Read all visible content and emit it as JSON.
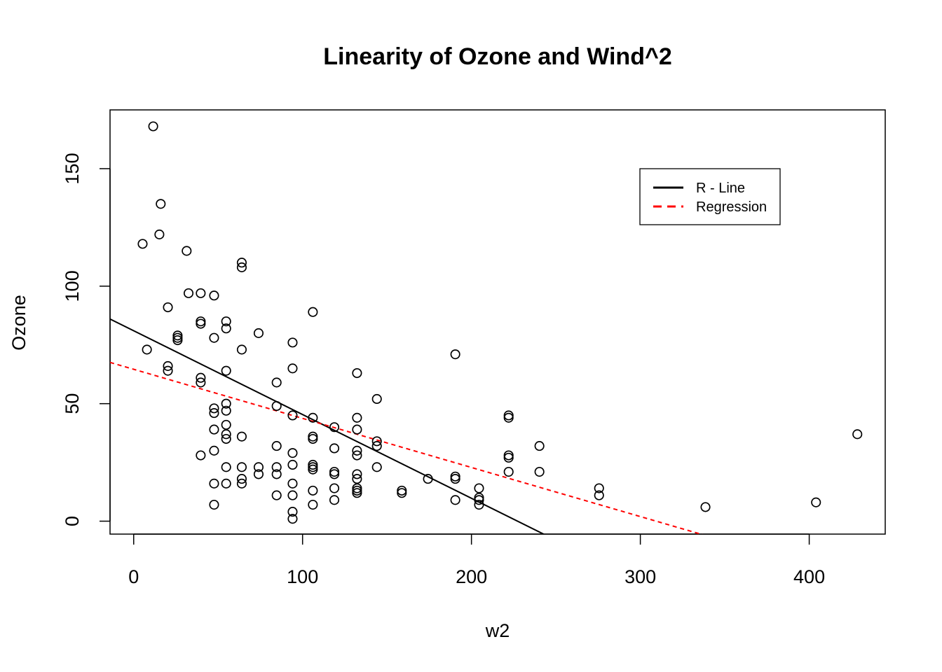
{
  "chart_data": {
    "type": "scatter",
    "title": "Linearity of Ozone and Wind^2",
    "xlabel": "w2",
    "ylabel": "Ozone",
    "xlim": [
      -14,
      445
    ],
    "ylim": [
      -5.5,
      175
    ],
    "xticks": [
      0,
      100,
      200,
      300,
      400
    ],
    "yticks": [
      0,
      50,
      100,
      150
    ],
    "grid": false,
    "legend_position": "top-right",
    "points": [
      [
        5.29,
        118
      ],
      [
        7.84,
        73
      ],
      [
        11.56,
        168
      ],
      [
        15.21,
        122
      ],
      [
        16,
        135
      ],
      [
        20.25,
        91
      ],
      [
        20.25,
        66
      ],
      [
        20.25,
        64
      ],
      [
        26.01,
        79
      ],
      [
        26.01,
        77
      ],
      [
        26.01,
        78
      ],
      [
        31.36,
        115
      ],
      [
        32.49,
        97
      ],
      [
        39.69,
        97
      ],
      [
        39.69,
        85
      ],
      [
        39.69,
        84
      ],
      [
        39.69,
        61
      ],
      [
        39.69,
        59
      ],
      [
        39.69,
        28
      ],
      [
        47.61,
        96
      ],
      [
        47.61,
        78
      ],
      [
        47.61,
        48
      ],
      [
        47.61,
        46
      ],
      [
        47.61,
        39
      ],
      [
        47.61,
        30
      ],
      [
        47.61,
        16
      ],
      [
        47.61,
        7
      ],
      [
        54.76,
        85
      ],
      [
        54.76,
        82
      ],
      [
        54.76,
        64
      ],
      [
        54.76,
        50
      ],
      [
        54.76,
        47
      ],
      [
        54.76,
        41
      ],
      [
        54.76,
        37
      ],
      [
        54.76,
        35
      ],
      [
        54.76,
        23
      ],
      [
        54.76,
        16
      ],
      [
        64,
        110
      ],
      [
        64,
        108
      ],
      [
        64,
        73
      ],
      [
        64,
        36
      ],
      [
        64,
        23
      ],
      [
        64,
        18
      ],
      [
        64,
        16
      ],
      [
        73.96,
        80
      ],
      [
        73.96,
        23
      ],
      [
        73.96,
        20
      ],
      [
        84.64,
        59
      ],
      [
        84.64,
        49
      ],
      [
        84.64,
        32
      ],
      [
        84.64,
        23
      ],
      [
        84.64,
        20
      ],
      [
        84.64,
        11
      ],
      [
        94.09,
        76
      ],
      [
        94.09,
        65
      ],
      [
        94.09,
        45
      ],
      [
        94.09,
        29
      ],
      [
        94.09,
        24
      ],
      [
        94.09,
        16
      ],
      [
        94.09,
        11
      ],
      [
        94.09,
        4
      ],
      [
        94.09,
        1
      ],
      [
        106.09,
        89
      ],
      [
        106.09,
        44
      ],
      [
        106.09,
        36
      ],
      [
        106.09,
        35
      ],
      [
        106.09,
        24
      ],
      [
        106.09,
        23
      ],
      [
        106.09,
        22
      ],
      [
        106.09,
        13
      ],
      [
        106.09,
        7
      ],
      [
        118.81,
        40
      ],
      [
        118.81,
        31
      ],
      [
        118.81,
        21
      ],
      [
        118.81,
        20
      ],
      [
        118.81,
        14
      ],
      [
        118.81,
        9
      ],
      [
        132.25,
        63
      ],
      [
        132.25,
        44
      ],
      [
        132.25,
        39
      ],
      [
        132.25,
        30
      ],
      [
        132.25,
        28
      ],
      [
        132.25,
        20
      ],
      [
        132.25,
        18
      ],
      [
        132.25,
        14
      ],
      [
        132.25,
        13
      ],
      [
        132.25,
        12
      ],
      [
        144,
        52
      ],
      [
        144,
        34
      ],
      [
        144,
        32
      ],
      [
        144,
        23
      ],
      [
        158.76,
        13
      ],
      [
        158.76,
        12
      ],
      [
        174.24,
        18
      ],
      [
        190.44,
        71
      ],
      [
        190.44,
        19
      ],
      [
        190.44,
        18
      ],
      [
        190.44,
        9
      ],
      [
        204.49,
        14
      ],
      [
        204.49,
        10
      ],
      [
        204.49,
        9
      ],
      [
        204.49,
        7
      ],
      [
        222.01,
        45
      ],
      [
        222.01,
        44
      ],
      [
        222.01,
        28
      ],
      [
        222.01,
        27
      ],
      [
        222.01,
        21
      ],
      [
        240.25,
        32
      ],
      [
        240.25,
        21
      ],
      [
        275.56,
        14
      ],
      [
        275.56,
        11
      ],
      [
        338.56,
        6
      ],
      [
        404.01,
        8
      ],
      [
        428.49,
        37
      ]
    ],
    "lines": [
      {
        "name": "R - Line",
        "color": "#000000",
        "dash": "solid",
        "intercept": 81.03,
        "slope": -0.3565
      },
      {
        "name": "Regression",
        "color": "#ff0000",
        "dash": "dashed",
        "intercept": 64.63,
        "slope": -0.2089
      }
    ]
  }
}
